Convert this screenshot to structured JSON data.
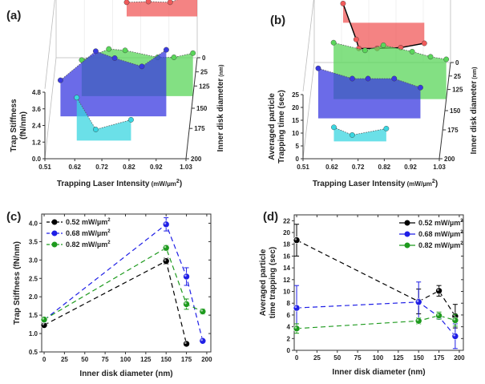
{
  "chart_data": [
    {
      "id": "a",
      "panel_label": "(a)",
      "type": "area",
      "projection": "3d",
      "xlabel": "Trapping Laser Intensity",
      "xlabel_units": "(mW/µm",
      "xlabel_sup": "2",
      "xlabel_close": ")",
      "ylabel_lines": [
        "Trap Stiffness",
        "(fN/nm)"
      ],
      "zlabel": "Inner disk diameter",
      "zlabel_units": "(nm)",
      "x_ticks": [
        "0.51",
        "0.62",
        "0.72",
        "0.82",
        "0.92",
        "1.03"
      ],
      "y_ticks": [
        "0.0",
        "1.2",
        "2.4",
        "3.6",
        "4.8"
      ],
      "z_ticks": [
        "0",
        "25",
        "125",
        "150",
        "175",
        "200"
      ],
      "ylim": [
        0,
        4.8
      ],
      "series": [
        {
          "name": "0 nm",
          "color": "#f05a5a",
          "x": [
            0.77,
            0.85,
            0.93,
            0.99,
            1.03
          ],
          "values": [
            4.0,
            4.05,
            4.0,
            4.4,
            4.8
          ]
        },
        {
          "name": "125 nm",
          "color": "#5ad65a",
          "x": [
            0.62,
            0.72,
            0.78,
            0.9,
            0.96,
            1.03
          ],
          "values": [
            2.6,
            3.4,
            3.3,
            2.8,
            2.8,
            3.1
          ]
        },
        {
          "name": "150 nm",
          "color": "#3a3ae0",
          "x": [
            0.55,
            0.68,
            0.75,
            0.85,
            0.94
          ],
          "values": [
            2.6,
            4.7,
            4.2,
            3.6,
            4.8
          ]
        },
        {
          "name": "175 nm",
          "color": "#3ad6e0",
          "x": [
            0.62,
            0.69,
            0.82
          ],
          "values": [
            3.1,
            0.8,
            1.5
          ]
        }
      ]
    },
    {
      "id": "b",
      "panel_label": "(b)",
      "type": "area",
      "projection": "3d",
      "xlabel": "Trapping Laser Intensity",
      "xlabel_units": "(mW/µm",
      "xlabel_sup": "2",
      "xlabel_close": ")",
      "ylabel_lines": [
        "Averaged particle",
        "Trapping time (sec)"
      ],
      "zlabel": "Inner disk diameter",
      "zlabel_units": "(nm)",
      "x_ticks": [
        "0.51",
        "0.62",
        "0.72",
        "0.82",
        "0.92",
        "1.03"
      ],
      "y_ticks": [
        "0",
        "5",
        "10",
        "15",
        "20",
        "25"
      ],
      "z_ticks": [
        "0",
        "25",
        "125",
        "150",
        "175",
        "200"
      ],
      "ylim": [
        0,
        25
      ],
      "series": [
        {
          "name": "0 nm",
          "color": "#f05a5a",
          "x": [
            0.62,
            0.67,
            0.68,
            0.75,
            0.84,
            0.93
          ],
          "values": [
            23,
            9,
            5.5,
            5.5,
            5.8,
            7.5
          ]
        },
        {
          "name": "125 nm",
          "color": "#5ad65a",
          "x": [
            0.6,
            0.72,
            0.79,
            0.9,
            0.97,
            1.03
          ],
          "values": [
            22,
            19,
            21,
            18.5,
            16.5,
            15.5
          ]
        },
        {
          "name": "150 nm",
          "color": "#3a3ae0",
          "x": [
            0.55,
            0.68,
            0.74,
            0.84,
            0.94
          ],
          "values": [
            19.5,
            15.5,
            15.5,
            15.5,
            12
          ]
        },
        {
          "name": "175 nm",
          "color": "#3ad6e0",
          "x": [
            0.62,
            0.69,
            0.82
          ],
          "values": [
            5.5,
            2.5,
            5
          ]
        }
      ]
    },
    {
      "id": "c",
      "panel_label": "(c)",
      "type": "line",
      "xlabel": "Inner disk diameter (nm)",
      "ylabel": "Trap Stiffness (fN/nm)",
      "xlim": [
        -3,
        205
      ],
      "ylim": [
        0.5,
        4.25
      ],
      "x_ticks": [
        0,
        25,
        50,
        75,
        100,
        125,
        150,
        175,
        200
      ],
      "y_ticks": [
        "0.5",
        "1.0",
        "1.5",
        "2.0",
        "2.5",
        "3.0",
        "3.5",
        "4.0"
      ],
      "legend_position": "top-left",
      "series": [
        {
          "name": "0.52 mW/µm",
          "sup": "2",
          "color": "#000000",
          "x": [
            0,
            150,
            175
          ],
          "values": [
            1.23,
            2.97,
            0.72
          ],
          "err": [
            0.05,
            0.08,
            0.03
          ]
        },
        {
          "name": "0.68 mW/µm",
          "sup": "2",
          "color": "#1f1fe6",
          "x": [
            0,
            150,
            175,
            195
          ],
          "values": [
            1.37,
            3.97,
            2.55,
            0.8
          ],
          "err": [
            0.06,
            0.18,
            0.24,
            0.03
          ]
        },
        {
          "name": "0.82 mW/µm",
          "sup": "2",
          "color": "#1e9a1e",
          "x": [
            0,
            150,
            175,
            195
          ],
          "values": [
            1.38,
            3.33,
            1.8,
            1.6
          ],
          "err": [
            0.04,
            0.07,
            0.14,
            0.07
          ]
        }
      ]
    },
    {
      "id": "d",
      "panel_label": "(d)",
      "type": "line",
      "xlabel": "Inner disk diameter (nm)",
      "ylabel_lines": [
        "Averaged particle",
        "time trapping (sec)"
      ],
      "xlim": [
        -3,
        205
      ],
      "ylim": [
        0,
        23
      ],
      "x_ticks": [
        0,
        25,
        50,
        75,
        100,
        125,
        150,
        175,
        200
      ],
      "y_ticks": [
        "0",
        "2",
        "4",
        "6",
        "8",
        "10",
        "12",
        "14",
        "16",
        "18",
        "20",
        "22"
      ],
      "legend_position": "top-right",
      "series": [
        {
          "name": "0.52 mW/µm",
          "sup": "2",
          "color": "#000000",
          "x": [
            0,
            150,
            175,
            195
          ],
          "values": [
            18.7,
            8.3,
            10.1,
            5.8
          ],
          "err": [
            2.7,
            2.1,
            0.9,
            2.0
          ]
        },
        {
          "name": "0.68 mW/µm",
          "sup": "2",
          "color": "#1f1fe6",
          "x": [
            0,
            150,
            175,
            195
          ],
          "values": [
            7.2,
            8.2,
            5.7,
            2.4
          ],
          "err": [
            3.8,
            3.4,
            0.3,
            2.1
          ]
        },
        {
          "name": "0.82 mW/µm",
          "sup": "2",
          "color": "#1e9a1e",
          "x": [
            0,
            150,
            175,
            195
          ],
          "values": [
            3.7,
            5.0,
            5.9,
            5.1
          ],
          "err": [
            0.8,
            0.5,
            0.6,
            1.0
          ]
        }
      ]
    }
  ]
}
